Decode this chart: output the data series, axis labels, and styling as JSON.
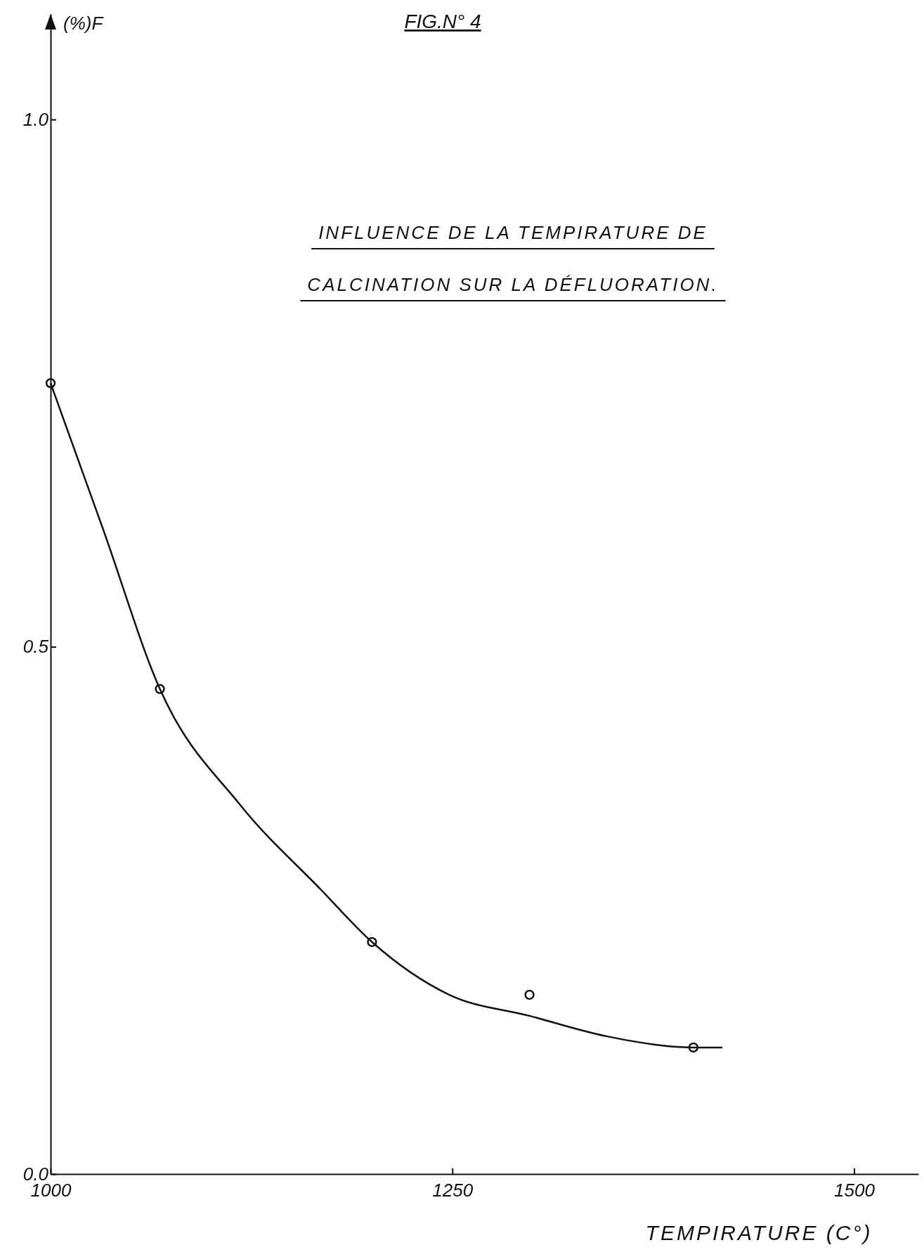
{
  "chart_data": {
    "type": "scatter",
    "title": "FIG.N° 4",
    "subtitle": "INFLUENCE DE LA TEMPIRATURE DE CALCINATION SUR LA DÉFLUORATION.",
    "xlabel": "TEMPIRATURE (C°)",
    "ylabel": "(%)F",
    "xlim": [
      1000,
      1540
    ],
    "ylim": [
      0,
      1.1
    ],
    "xticks": [
      1000,
      1250,
      1500
    ],
    "yticks": [
      {
        "value": 0,
        "label": "0.0"
      },
      {
        "value": 0.5,
        "label": "0.5"
      },
      {
        "value": 1,
        "label": "1.0"
      }
    ],
    "grid": false,
    "series": [
      {
        "marker": "circle",
        "color": "#111111",
        "x": [
          1000,
          1068,
          1200,
          1298,
          1400
        ],
        "values": [
          0.75,
          0.46,
          0.22,
          0.17,
          0.12
        ]
      },
      {
        "type": "line",
        "color": "#111111",
        "line_style": "solid",
        "x": [
          1000,
          1033,
          1068,
          1118,
          1168,
          1200,
          1248,
          1298,
          1348,
          1400,
          1418
        ],
        "values": [
          0.75,
          0.61,
          0.46,
          0.35,
          0.27,
          0.22,
          0.17,
          0.15,
          0.13,
          0.12,
          0.12
        ]
      }
    ]
  }
}
